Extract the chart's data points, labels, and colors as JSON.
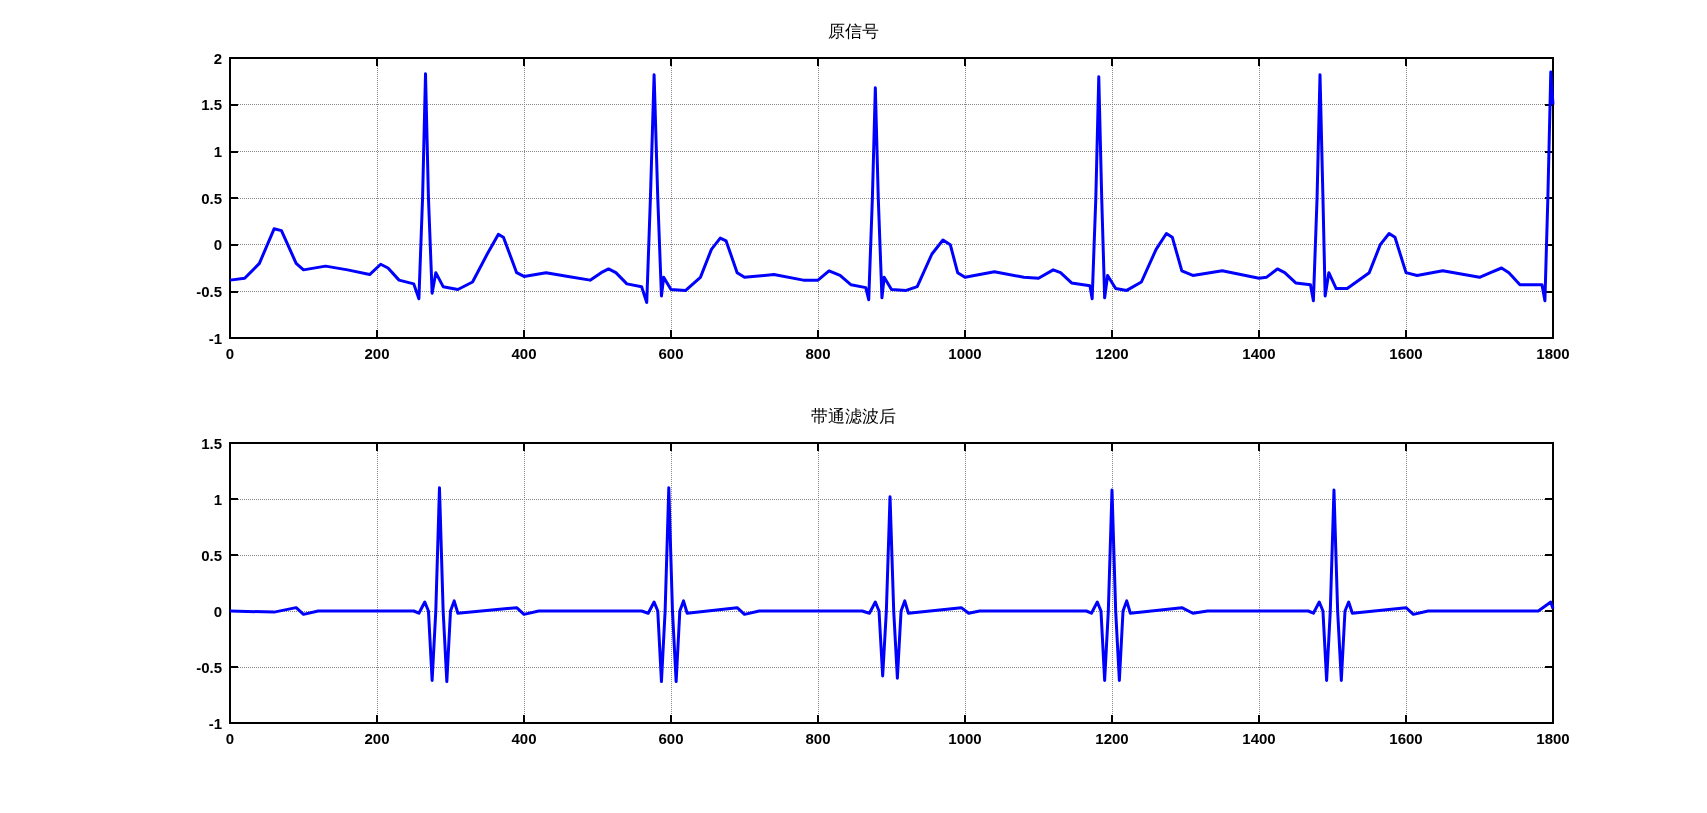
{
  "chart_data": [
    {
      "type": "line",
      "title": "原信号",
      "xlim": [
        0,
        1800
      ],
      "xticks": [
        0,
        200,
        400,
        600,
        800,
        1000,
        1200,
        1400,
        1600,
        1800
      ],
      "ylim": [
        -1,
        2
      ],
      "yticks": [
        -1,
        -0.5,
        0,
        0.5,
        1,
        1.5,
        2
      ],
      "grid": true,
      "marker": "none",
      "line_style": "solid",
      "series": [
        {
          "color": "#0000ff",
          "x": [
            0,
            20,
            40,
            60,
            70,
            90,
            100,
            130,
            160,
            190,
            205,
            215,
            230,
            250,
            257,
            262,
            266,
            270,
            275,
            280,
            290,
            310,
            330,
            350,
            365,
            372,
            390,
            400,
            430,
            460,
            490,
            505,
            515,
            525,
            540,
            560,
            567,
            572,
            577,
            582,
            587,
            590,
            600,
            620,
            640,
            655,
            667,
            675,
            690,
            700,
            740,
            780,
            800,
            815,
            830,
            845,
            865,
            869,
            874,
            878,
            882,
            887,
            890,
            900,
            920,
            935,
            955,
            970,
            980,
            990,
            1000,
            1040,
            1080,
            1100,
            1120,
            1130,
            1145,
            1170,
            1173,
            1178,
            1182,
            1186,
            1190,
            1194,
            1205,
            1220,
            1240,
            1260,
            1274,
            1282,
            1295,
            1310,
            1350,
            1400,
            1410,
            1425,
            1435,
            1450,
            1470,
            1474,
            1479,
            1483,
            1487,
            1490,
            1495,
            1505,
            1520,
            1550,
            1565,
            1577,
            1585,
            1600,
            1615,
            1650,
            1700,
            1715,
            1730,
            1740,
            1755,
            1785,
            1789,
            1793,
            1797,
            1800
          ],
          "values": [
            -0.38,
            -0.36,
            -0.2,
            0.17,
            0.15,
            -0.2,
            -0.27,
            -0.23,
            -0.27,
            -0.32,
            -0.21,
            -0.25,
            -0.38,
            -0.42,
            -0.58,
            0.5,
            1.83,
            0.5,
            -0.52,
            -0.3,
            -0.45,
            -0.48,
            -0.4,
            -0.1,
            0.11,
            0.08,
            -0.3,
            -0.34,
            -0.3,
            -0.34,
            -0.38,
            -0.3,
            -0.26,
            -0.3,
            -0.42,
            -0.45,
            -0.62,
            0.5,
            1.82,
            0.5,
            -0.55,
            -0.35,
            -0.48,
            -0.49,
            -0.35,
            -0.05,
            0.07,
            0.04,
            -0.3,
            -0.35,
            -0.32,
            -0.38,
            -0.38,
            -0.28,
            -0.33,
            -0.43,
            -0.46,
            -0.59,
            0.5,
            1.68,
            0.5,
            -0.57,
            -0.35,
            -0.48,
            -0.49,
            -0.45,
            -0.1,
            0.05,
            0.0,
            -0.3,
            -0.35,
            -0.29,
            -0.35,
            -0.36,
            -0.27,
            -0.3,
            -0.41,
            -0.44,
            -0.58,
            0.5,
            1.8,
            0.5,
            -0.57,
            -0.33,
            -0.47,
            -0.49,
            -0.4,
            -0.05,
            0.12,
            0.08,
            -0.28,
            -0.33,
            -0.28,
            -0.36,
            -0.35,
            -0.26,
            -0.3,
            -0.41,
            -0.43,
            -0.6,
            0.5,
            1.82,
            0.5,
            -0.55,
            -0.3,
            -0.47,
            -0.47,
            -0.3,
            0.0,
            0.12,
            0.08,
            -0.3,
            -0.33,
            -0.28,
            -0.35,
            -0.3,
            -0.25,
            -0.3,
            -0.43,
            -0.43,
            -0.6,
            0.5,
            1.85,
            1.5
          ]
        }
      ]
    },
    {
      "type": "line",
      "title": "带通滤波后",
      "xlim": [
        0,
        1800
      ],
      "xticks": [
        0,
        200,
        400,
        600,
        800,
        1000,
        1200,
        1400,
        1600,
        1800
      ],
      "ylim": [
        -1,
        1.5
      ],
      "yticks": [
        -1,
        -0.5,
        0,
        0.5,
        1,
        1.5
      ],
      "grid": true,
      "marker": "none",
      "line_style": "solid",
      "series": [
        {
          "color": "#0000ff",
          "x": [
            0,
            60,
            90,
            100,
            120,
            250,
            257,
            265,
            270,
            275,
            280,
            285,
            290,
            295,
            300,
            305,
            310,
            390,
            400,
            420,
            560,
            569,
            577,
            582,
            587,
            592,
            597,
            602,
            607,
            612,
            617,
            622,
            690,
            700,
            720,
            860,
            870,
            878,
            883,
            888,
            893,
            898,
            903,
            908,
            913,
            918,
            923,
            995,
            1005,
            1020,
            1165,
            1172,
            1180,
            1185,
            1190,
            1195,
            1200,
            1205,
            1210,
            1215,
            1220,
            1225,
            1295,
            1310,
            1330,
            1467,
            1474,
            1482,
            1487,
            1492,
            1497,
            1502,
            1507,
            1512,
            1517,
            1522,
            1527,
            1600,
            1610,
            1630,
            1780,
            1797,
            1800
          ],
          "values": [
            0.0,
            -0.01,
            0.03,
            -0.03,
            0.0,
            0.0,
            -0.02,
            0.08,
            0.0,
            -0.62,
            0.0,
            1.1,
            0.0,
            -0.63,
            0.0,
            0.09,
            -0.02,
            0.03,
            -0.03,
            0.0,
            0.0,
            -0.02,
            0.08,
            0.0,
            -0.63,
            0.0,
            1.1,
            0.0,
            -0.63,
            0.0,
            0.09,
            -0.02,
            0.03,
            -0.03,
            0.0,
            0.0,
            -0.02,
            0.08,
            0.0,
            -0.58,
            0.0,
            1.02,
            0.0,
            -0.6,
            0.0,
            0.09,
            -0.02,
            0.03,
            -0.02,
            0.0,
            0.0,
            -0.02,
            0.08,
            0.0,
            -0.62,
            0.0,
            1.08,
            0.0,
            -0.62,
            0.0,
            0.09,
            -0.02,
            0.03,
            -0.02,
            0.0,
            0.0,
            -0.02,
            0.08,
            0.0,
            -0.62,
            0.0,
            1.08,
            0.0,
            -0.62,
            0.0,
            0.08,
            -0.02,
            0.03,
            -0.03,
            0.0,
            0.0,
            0.08,
            0.02
          ]
        }
      ]
    }
  ]
}
